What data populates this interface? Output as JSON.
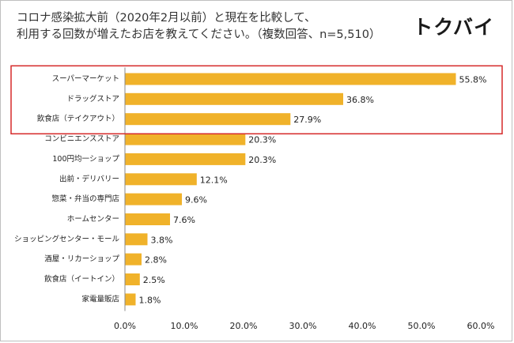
{
  "header": {
    "title_line1": "コロナ感染拡大前（2020年2月以前）と現在を比較して、",
    "title_line2": "利用する回数が増えたお店を教えてください。（複数回答、n=5,510）",
    "logo": "トクバイ"
  },
  "colors": {
    "bar": "#f0b22a",
    "highlight_box": "#d62a2a",
    "axis": "#888888",
    "text": "#222222"
  },
  "chart_data": {
    "type": "bar",
    "orientation": "horizontal",
    "title": "コロナ感染拡大前（2020年2月以前）と現在を比較して、利用する回数が増えたお店を教えてください。（複数回答、n=5,510）",
    "categories": [
      "スーパーマーケット",
      "ドラッグストア",
      "飲食店（テイクアウト）",
      "コンビニエンスストア",
      "100円均一ショップ",
      "出前・デリバリー",
      "惣菜・弁当の専門店",
      "ホームセンター",
      "ショッピングセンター・モール",
      "酒屋・リカーショップ",
      "飲食店（イートイン）",
      "家電量販店"
    ],
    "values": [
      55.8,
      36.8,
      27.9,
      20.3,
      20.3,
      12.1,
      9.6,
      7.6,
      3.8,
      2.8,
      2.5,
      1.8
    ],
    "value_labels": [
      "55.8%",
      "36.8%",
      "27.9%",
      "20.3%",
      "20.3%",
      "12.1%",
      "9.6%",
      "7.6%",
      "3.8%",
      "2.8%",
      "2.5%",
      "1.8%"
    ],
    "xlim": [
      0,
      60
    ],
    "xticks": [
      "0.0%",
      "10.0%",
      "20.0%",
      "30.0%",
      "40.0%",
      "50.0%",
      "60.0%"
    ],
    "highlighted_count": 3,
    "grid": false,
    "legend": "none"
  }
}
